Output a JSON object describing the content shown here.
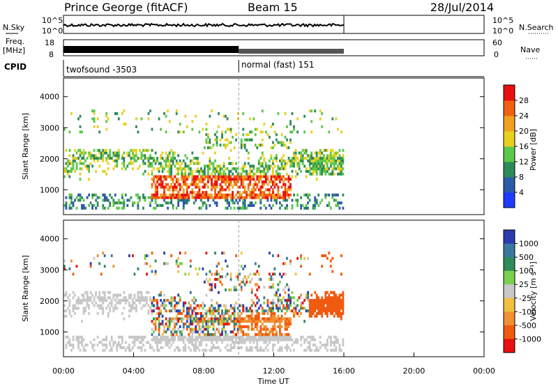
{
  "header": {
    "station": "Prince George (fitACF)",
    "beam": "Beam 15",
    "date": "28/Jul/2014"
  },
  "summary": {
    "nsky_label": "N.Sky",
    "nsky_ticks": [
      "10^5",
      "10^0"
    ],
    "nsearch_label": "N.Search",
    "nsearch_ticks": [
      "10^5",
      "10^0"
    ],
    "freq_label": "Freq.",
    "freq_unit": "[MHz]",
    "freq_ticks": [
      "18",
      "8"
    ],
    "nave_label": "Nave",
    "nave_ticks": [
      "60",
      "0"
    ],
    "cpid_label": "CPID",
    "cpid_segments": [
      {
        "label": "twofsound -3503",
        "start_h": 0,
        "end_h": 10
      },
      {
        "label": "normal (fast) 151",
        "start_h": 10,
        "end_h": 16
      }
    ]
  },
  "chart_data": [
    {
      "type": "heatmap",
      "name": "power",
      "ylabel": "Slant Range [km]",
      "ylim": [
        200,
        4600
      ],
      "xlim_hours": [
        0,
        24
      ],
      "yticks": [
        1000,
        2000,
        3000,
        4000
      ],
      "colorbar": {
        "label": "Power [dB]",
        "ticks": [
          "4",
          "8",
          "12",
          "16",
          "20",
          "24",
          "28"
        ],
        "range": [
          0,
          30
        ],
        "colors": [
          "#1e3cff",
          "#2a5aa8",
          "#2f8a5a",
          "#5cc84a",
          "#e8d020",
          "#f0a020",
          "#f06010",
          "#e81010"
        ]
      },
      "data_extent_hours": [
        0,
        16
      ]
    },
    {
      "type": "heatmap",
      "name": "velocity",
      "xlabel": "Time UT",
      "ylabel": "Slant Range [km]",
      "ylim": [
        200,
        4600
      ],
      "xlim_hours": [
        0,
        24
      ],
      "yticks": [
        1000,
        2000,
        3000,
        4000
      ],
      "xticks": [
        "00:00",
        "04:00",
        "08:00",
        "12:00",
        "16:00",
        "20:00",
        "00:00"
      ],
      "colorbar": {
        "label": "Velocity [m s⁻¹]",
        "ticks": [
          "1000",
          "500",
          "100",
          "25",
          "-25",
          "-100",
          "-500",
          "-1000"
        ],
        "colors": [
          "#2a3cb0",
          "#3a78a0",
          "#2f8a5a",
          "#7ad050",
          "#c8c8c8",
          "#f0c040",
          "#f09030",
          "#f05a10",
          "#e81010"
        ]
      },
      "data_extent_hours": [
        0,
        16
      ]
    }
  ]
}
